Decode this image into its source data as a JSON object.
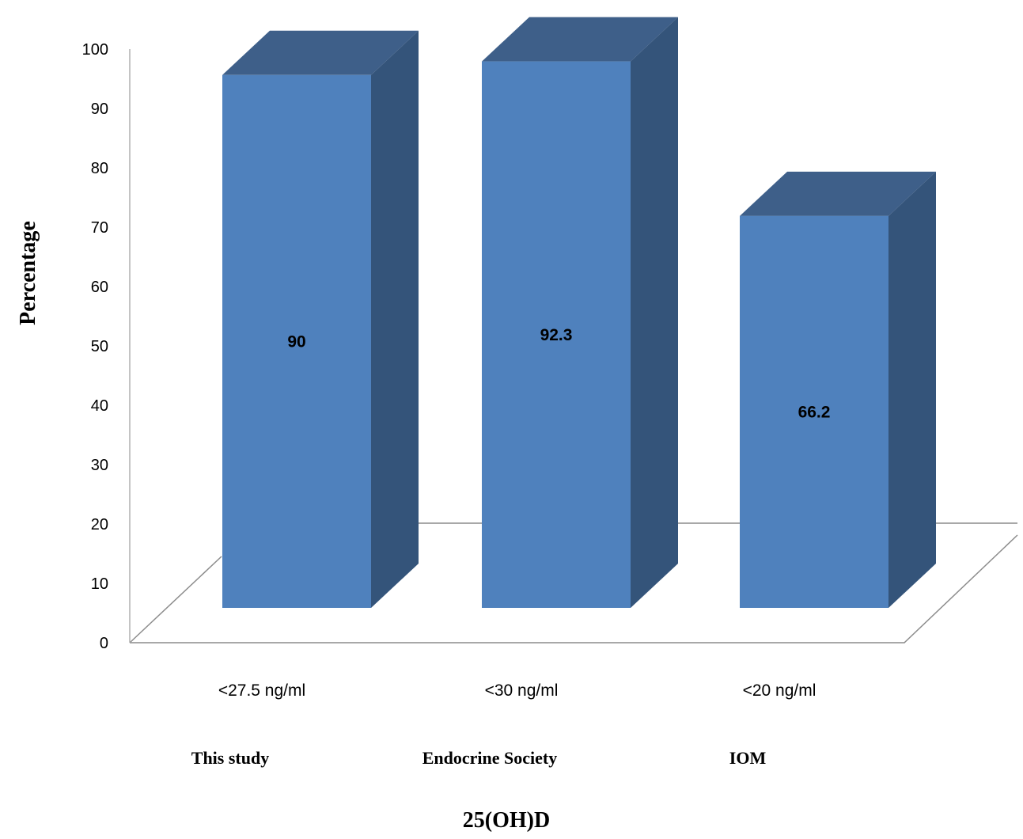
{
  "chart_data": {
    "type": "bar",
    "categories": [
      "<27.5 ng/ml",
      "<30 ng/ml",
      "<20 ng/ml"
    ],
    "groups": [
      "This study",
      "Endocrine Society",
      "IOM"
    ],
    "values": [
      90,
      92.3,
      66.2
    ],
    "data_labels": [
      "90",
      "92.3",
      "66.2"
    ],
    "xlabel": "25(OH)D",
    "ylabel": "Percentage",
    "ylim": [
      0,
      100
    ],
    "yticks": [
      "0",
      "10",
      "20",
      "30",
      "40",
      "50",
      "60",
      "70",
      "80",
      "90",
      "100"
    ],
    "grid": false,
    "legend": "none",
    "style": "3d-column",
    "colors": {
      "bar_front": "#4F81BD",
      "bar_top": "#3E5F89",
      "bar_side": "#34547A",
      "floor_line": "#8C8C8C",
      "axis_line": "#B0B0B0"
    }
  }
}
